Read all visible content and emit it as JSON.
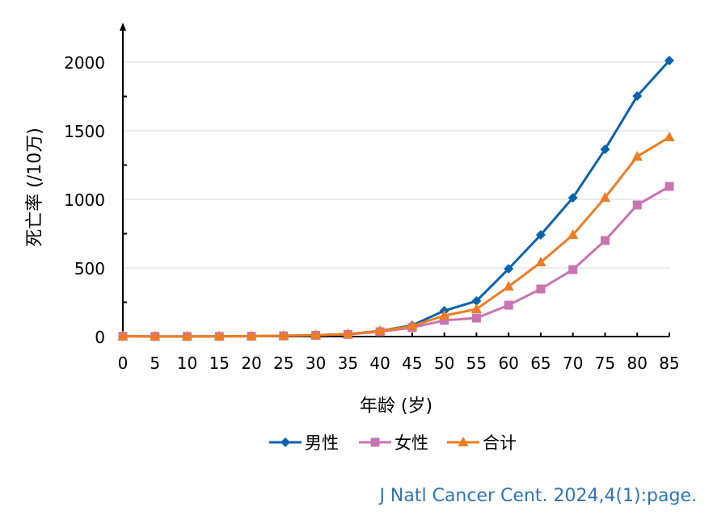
{
  "chart_data": {
    "type": "line",
    "title": "",
    "xlabel": "年龄 (岁)",
    "ylabel": "死亡率 (/10万)",
    "x": [
      0,
      5,
      10,
      15,
      20,
      25,
      30,
      35,
      40,
      45,
      50,
      55,
      60,
      65,
      70,
      75,
      80,
      85
    ],
    "xticks": [
      "0",
      "5",
      "10",
      "15",
      "20",
      "25",
      "30",
      "35",
      "40",
      "45",
      "50",
      "55",
      "60",
      "65",
      "70",
      "75",
      "80",
      "85"
    ],
    "ylim": [
      0,
      2000
    ],
    "yticks": [
      "0",
      "500",
      "1000",
      "1500",
      "2000"
    ],
    "yticks_values": [
      0,
      500,
      1000,
      1500,
      2000
    ],
    "grid": true,
    "legend_position": "bottom",
    "series": [
      {
        "name": "男性",
        "color": "#0b62ad",
        "marker": "diamond",
        "values": [
          3,
          1,
          1,
          2,
          3,
          6,
          10,
          18,
          41,
          82,
          188,
          259,
          494,
          741,
          1012,
          1365,
          1753,
          2012
        ]
      },
      {
        "name": "女性",
        "color": "#c874b0",
        "marker": "square",
        "values": [
          2,
          1,
          1,
          1,
          2,
          5,
          9,
          16,
          35,
          65,
          118,
          135,
          229,
          347,
          488,
          700,
          959,
          1094
        ]
      },
      {
        "name": "合计",
        "color": "#ed7d22",
        "marker": "triangle",
        "values": [
          3,
          1,
          1,
          2,
          3,
          6,
          10,
          17,
          41,
          76,
          153,
          200,
          365,
          541,
          741,
          1012,
          1312,
          1453
        ]
      }
    ]
  },
  "citation": "J Natl Cancer Cent. 2024,4(1):page."
}
